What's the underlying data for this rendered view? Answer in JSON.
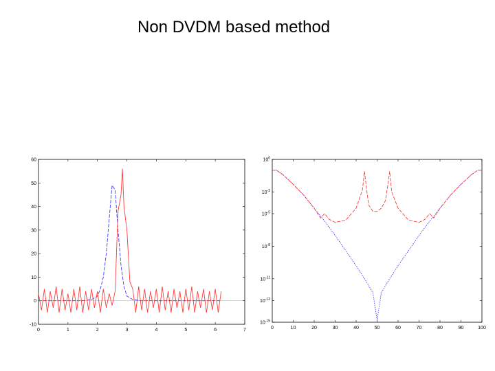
{
  "slide": {
    "title": "Non DVDM based method"
  },
  "colors": {
    "background": "#ffffff",
    "series_blue": "#3b3bff",
    "series_red": "#ff3b3b",
    "axes": "#000000"
  },
  "chart_data": [
    {
      "type": "line",
      "xlim": [
        0,
        7
      ],
      "ylim": [
        -10,
        60
      ],
      "xticks": [
        "0",
        "1",
        "2",
        "3",
        "4",
        "5",
        "6",
        "7"
      ],
      "yticks": [
        "-10",
        "0",
        "10",
        "20",
        "30",
        "40",
        "50",
        "60"
      ],
      "grid": false,
      "series": [
        {
          "color": "#3b3bff",
          "style": "dashed",
          "x": [
            0,
            0.5,
            1.0,
            1.5,
            1.8,
            2.0,
            2.1,
            2.2,
            2.3,
            2.4,
            2.5,
            2.6,
            2.7,
            2.8,
            2.9,
            3.0,
            3.2,
            3.5,
            4,
            5,
            6.2
          ],
          "y": [
            0,
            0,
            0,
            0,
            0.5,
            2,
            5,
            10,
            20,
            35,
            49,
            47,
            30,
            15,
            6,
            2,
            0.5,
            0,
            0,
            0,
            0
          ]
        },
        {
          "color": "#ff3b3b",
          "style": "solid",
          "x": [
            0,
            0.1,
            0.2,
            0.3,
            0.4,
            0.5,
            0.6,
            0.7,
            0.8,
            0.9,
            1.0,
            1.1,
            1.2,
            1.3,
            1.4,
            1.5,
            1.6,
            1.7,
            1.8,
            1.9,
            2.0,
            2.1,
            2.2,
            2.3,
            2.4,
            2.5,
            2.6,
            2.7,
            2.8,
            2.85,
            2.9,
            3.0,
            3.1,
            3.2,
            3.3,
            3.4,
            3.5,
            3.6,
            3.7,
            3.8,
            3.9,
            4.0,
            4.1,
            4.2,
            4.3,
            4.4,
            4.5,
            4.6,
            4.7,
            4.8,
            4.9,
            5.0,
            5.1,
            5.2,
            5.3,
            5.4,
            5.5,
            5.6,
            5.7,
            5.8,
            5.9,
            6.0,
            6.1,
            6.2
          ],
          "y": [
            3,
            -4,
            5,
            -5,
            4,
            -3,
            6,
            -5,
            5,
            -4,
            3,
            -5,
            5,
            -4,
            6,
            -5,
            4,
            -4,
            5,
            -3,
            4,
            -5,
            5,
            -3,
            3,
            -2,
            4,
            38,
            45,
            56,
            40,
            30,
            8,
            5,
            -5,
            6,
            -4,
            5,
            -5,
            4,
            -3,
            5,
            -5,
            6,
            -4,
            4,
            -5,
            5,
            -3,
            4,
            -5,
            5,
            -4,
            6,
            -5,
            4,
            -3,
            5,
            -5,
            4,
            -4,
            5,
            -5,
            4
          ]
        }
      ]
    },
    {
      "type": "line",
      "xlim": [
        0,
        100
      ],
      "ylim": [
        -15,
        0
      ],
      "yscale": "log",
      "xticks": [
        "0",
        "10",
        "20",
        "30",
        "40",
        "50",
        "60",
        "70",
        "80",
        "90",
        "100"
      ],
      "yticks": [
        "10^0",
        "10^-3",
        "10^-5",
        "10^-8",
        "10^-11",
        "10^-13",
        "10^-15"
      ],
      "grid": false,
      "series": [
        {
          "color": "#3b3bff",
          "style": "dotted",
          "x": [
            0,
            2,
            5,
            10,
            15,
            20,
            25,
            30,
            35,
            40,
            45,
            48,
            50,
            52,
            55,
            60,
            65,
            70,
            75,
            80,
            85,
            90,
            95,
            98,
            100
          ],
          "y": [
            -1.0,
            -1.0,
            -1.4,
            -2.3,
            -3.3,
            -4.5,
            -5.7,
            -7.0,
            -8.4,
            -9.8,
            -11.3,
            -12.3,
            -14.8,
            -12.3,
            -11.3,
            -9.8,
            -8.4,
            -7.0,
            -5.7,
            -4.5,
            -3.3,
            -2.3,
            -1.4,
            -1.0,
            -1.0
          ]
        },
        {
          "color": "#ff3b3b",
          "style": "dashed",
          "x": [
            0,
            2,
            5,
            10,
            15,
            20,
            23,
            25,
            27,
            30,
            35,
            40,
            43,
            44,
            45,
            46,
            48,
            50,
            52,
            54,
            55,
            56,
            57,
            60,
            65,
            70,
            73,
            75,
            77,
            80,
            85,
            90,
            95,
            98,
            100
          ],
          "y": [
            -1.0,
            -1.0,
            -1.4,
            -2.3,
            -3.3,
            -4.5,
            -5.4,
            -5.0,
            -5.5,
            -5.8,
            -5.6,
            -4.5,
            -2.8,
            -1.1,
            -2.8,
            -4.2,
            -4.8,
            -4.8,
            -4.5,
            -3.8,
            -2.5,
            -1.1,
            -3.0,
            -4.5,
            -5.6,
            -5.8,
            -5.5,
            -5.0,
            -5.4,
            -4.5,
            -3.3,
            -2.3,
            -1.4,
            -1.0,
            -1.0
          ]
        }
      ]
    }
  ]
}
